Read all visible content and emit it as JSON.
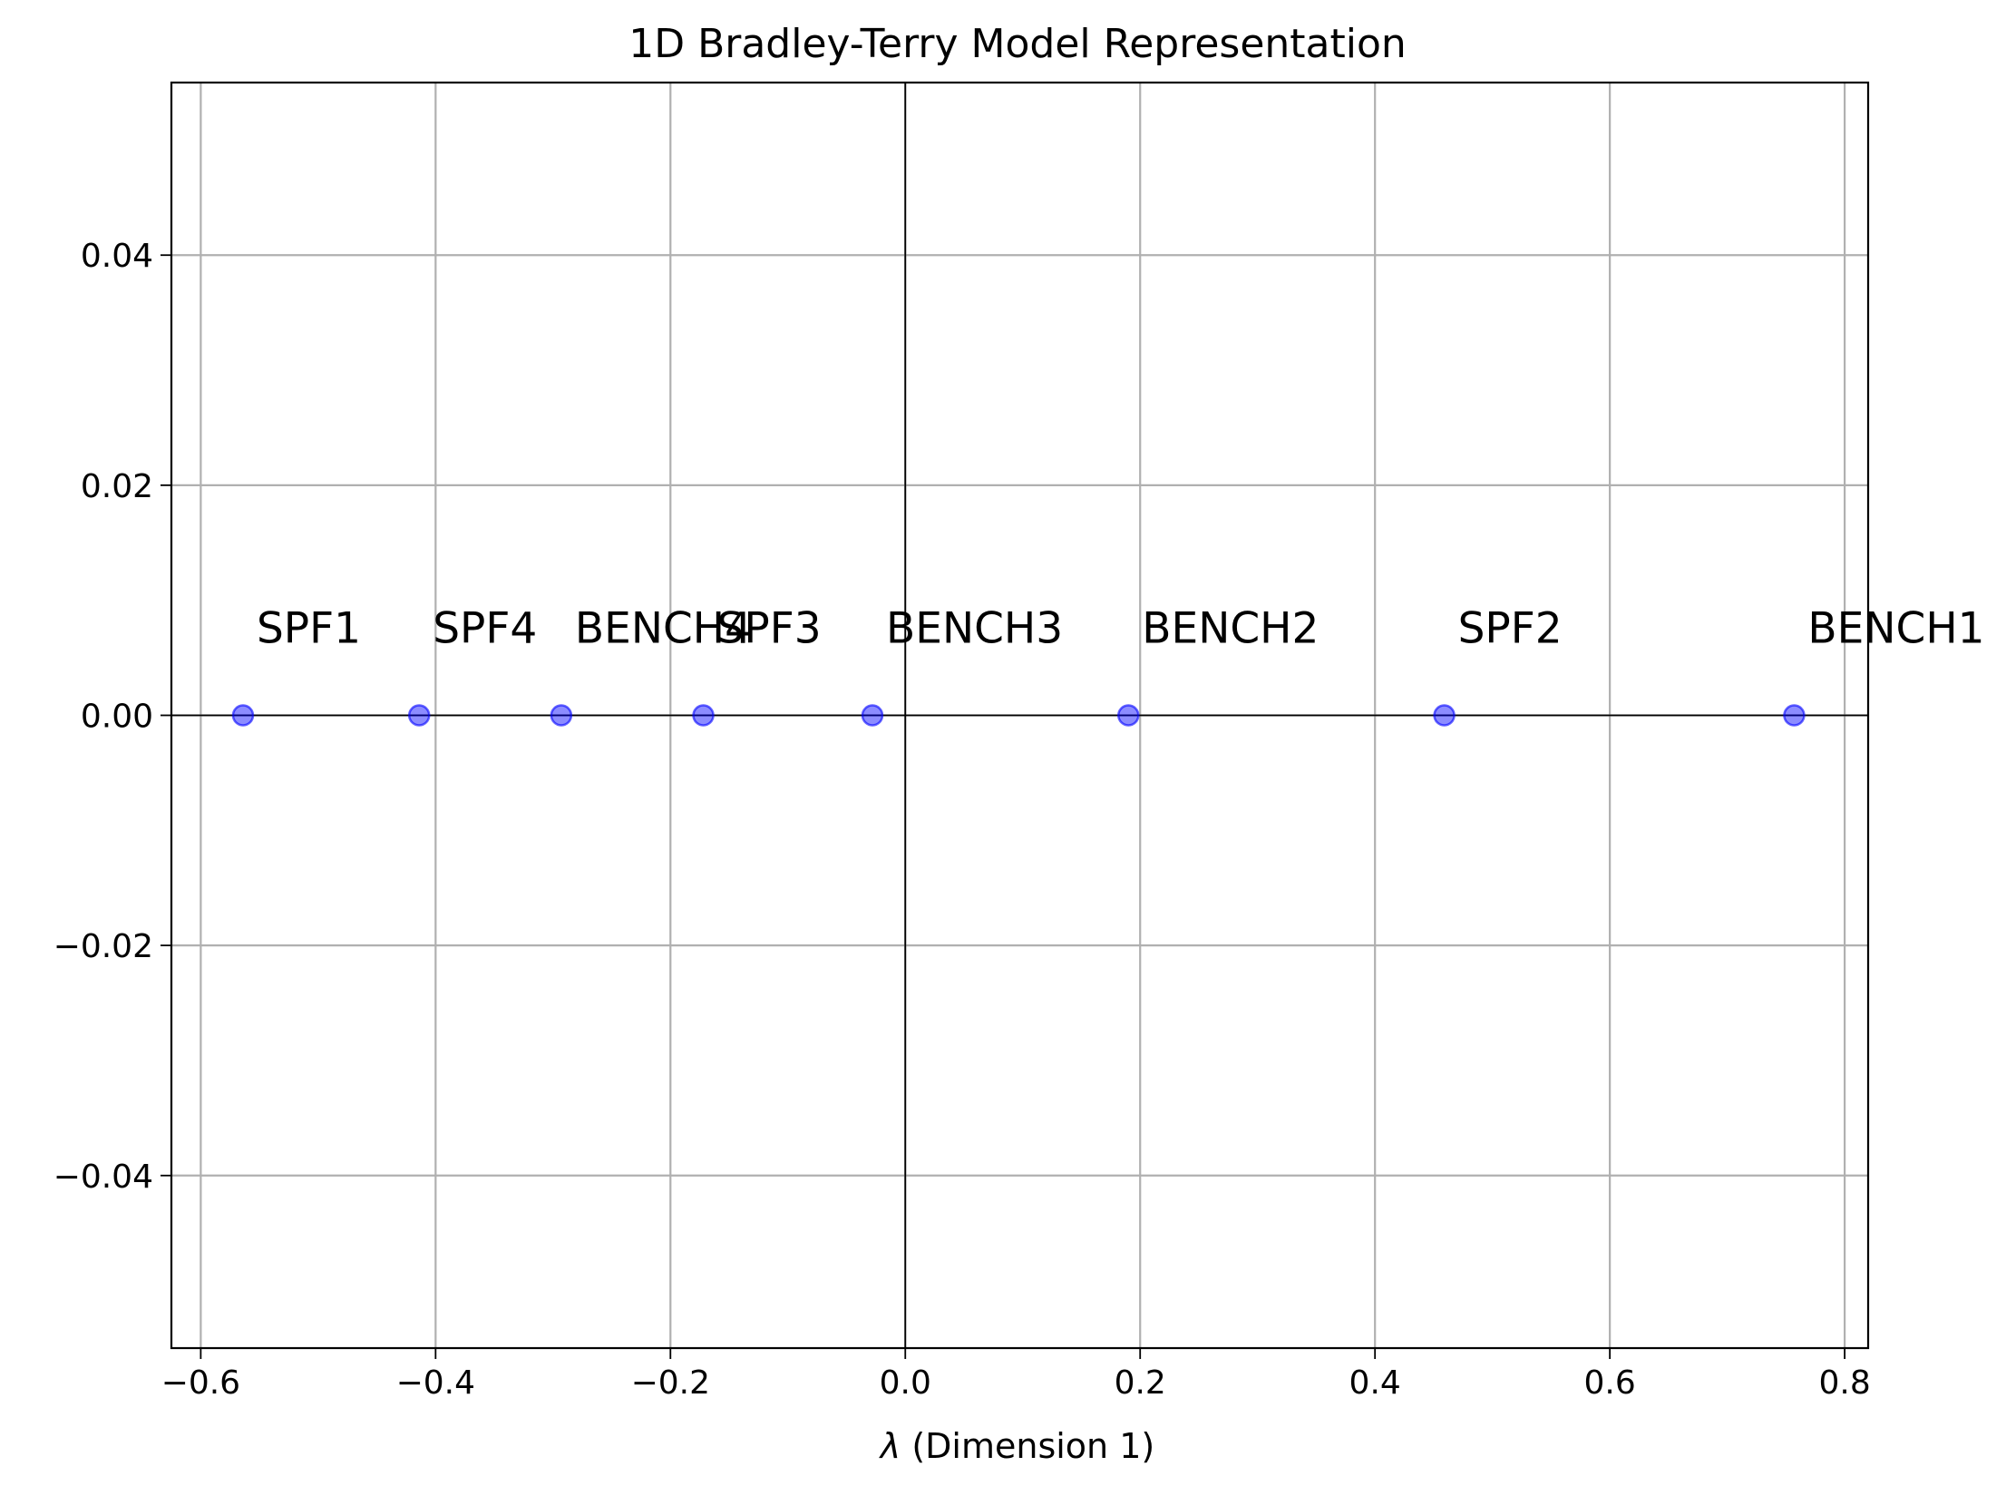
{
  "chart_data": {
    "type": "scatter",
    "title": "1D Bradley-Terry Model Representation",
    "xlabel_symbol": "λ",
    "xlabel_text": " (Dimension 1)",
    "ylabel": "",
    "xlim": [
      -0.625,
      0.82
    ],
    "ylim": [
      -0.055,
      0.055
    ],
    "grid": true,
    "reference_lines": {
      "x": 0,
      "y": 0
    },
    "x_ticks": [
      -0.6,
      -0.4,
      -0.2,
      0.0,
      0.2,
      0.4,
      0.6,
      0.8
    ],
    "x_tick_labels": [
      "−0.6",
      "−0.4",
      "−0.2",
      "0.0",
      "0.2",
      "0.4",
      "0.6",
      "0.8"
    ],
    "y_ticks": [
      0.04,
      0.02,
      0.0,
      -0.02,
      -0.04
    ],
    "y_tick_labels": [
      "0.04",
      "0.02",
      "0.00",
      "−0.02",
      "−0.04"
    ],
    "point_color": "#0000ff",
    "point_alpha": 0.45,
    "label_offset_y": 0.0075,
    "points": [
      {
        "label": "SPF1",
        "x": -0.564,
        "y": 0
      },
      {
        "label": "SPF4",
        "x": -0.414,
        "y": 0
      },
      {
        "label": "BENCH4",
        "x": -0.293,
        "y": 0
      },
      {
        "label": "SPF3",
        "x": -0.172,
        "y": 0
      },
      {
        "label": "BENCH3",
        "x": -0.028,
        "y": 0
      },
      {
        "label": "BENCH2",
        "x": 0.19,
        "y": 0
      },
      {
        "label": "SPF2",
        "x": 0.459,
        "y": 0
      },
      {
        "label": "BENCH1",
        "x": 0.757,
        "y": 0
      }
    ]
  }
}
